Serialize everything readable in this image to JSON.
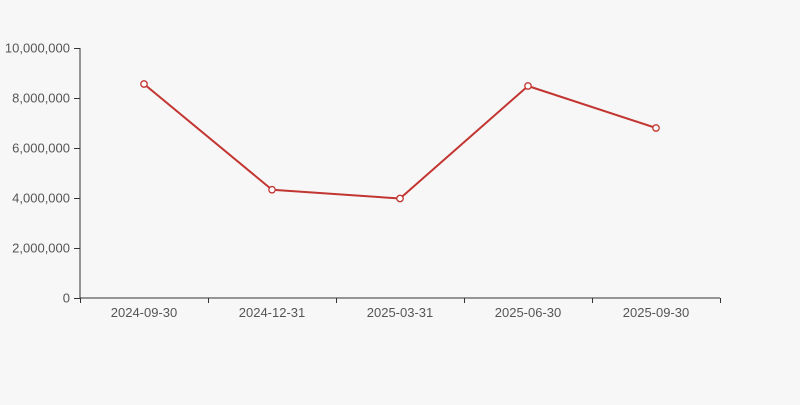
{
  "page": {
    "background": "#f7f7f7"
  },
  "chart_data": {
    "type": "line",
    "title": "",
    "categories": [
      "2024-09-30",
      "2024-12-31",
      "2025-03-31",
      "2025-06-30",
      "2025-09-30"
    ],
    "values": [
      8560000,
      4330000,
      3980000,
      8480000,
      6800000
    ],
    "ylim": [
      0,
      10000000
    ],
    "y_tick_values": [
      0,
      2000000,
      4000000,
      6000000,
      8000000,
      10000000
    ],
    "y_tick_labels": [
      "0",
      "2,000,000",
      "4,000,000",
      "6,000,000",
      "8,000,000",
      "10,000,000"
    ],
    "grid": false,
    "legend": false,
    "line_color": "#c23531",
    "marker_style": "open-circle",
    "marker_fill": "#ffffff",
    "axis_color": "#333333",
    "tick_label_color": "#555555"
  }
}
